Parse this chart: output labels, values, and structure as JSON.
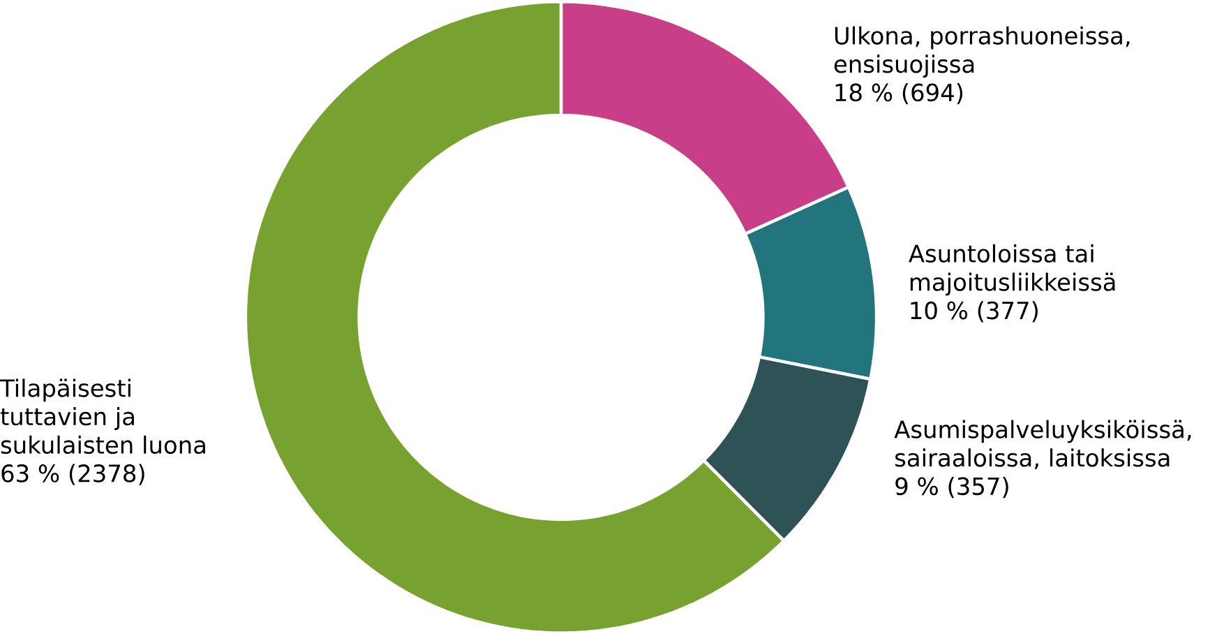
{
  "chart_data": {
    "type": "donut",
    "categories": [
      "Ulkona, porrashuoneissa, ensisuojissa",
      "Asuntoloissa tai majoitusliikkeissä",
      "Asumispalveluyksiköissä, sairaaloissa, laitoksissa",
      "Tilapäisesti tuttavien ja sukulaisten luona"
    ],
    "values": [
      694,
      377,
      357,
      2378
    ],
    "value_labels": [
      "18 % (694)",
      "10 % (377)",
      "9 % (357)",
      "63 % (2378)"
    ],
    "colors": [
      "#c83e87",
      "#23757d",
      "#2f5257",
      "#78a22f"
    ]
  }
}
